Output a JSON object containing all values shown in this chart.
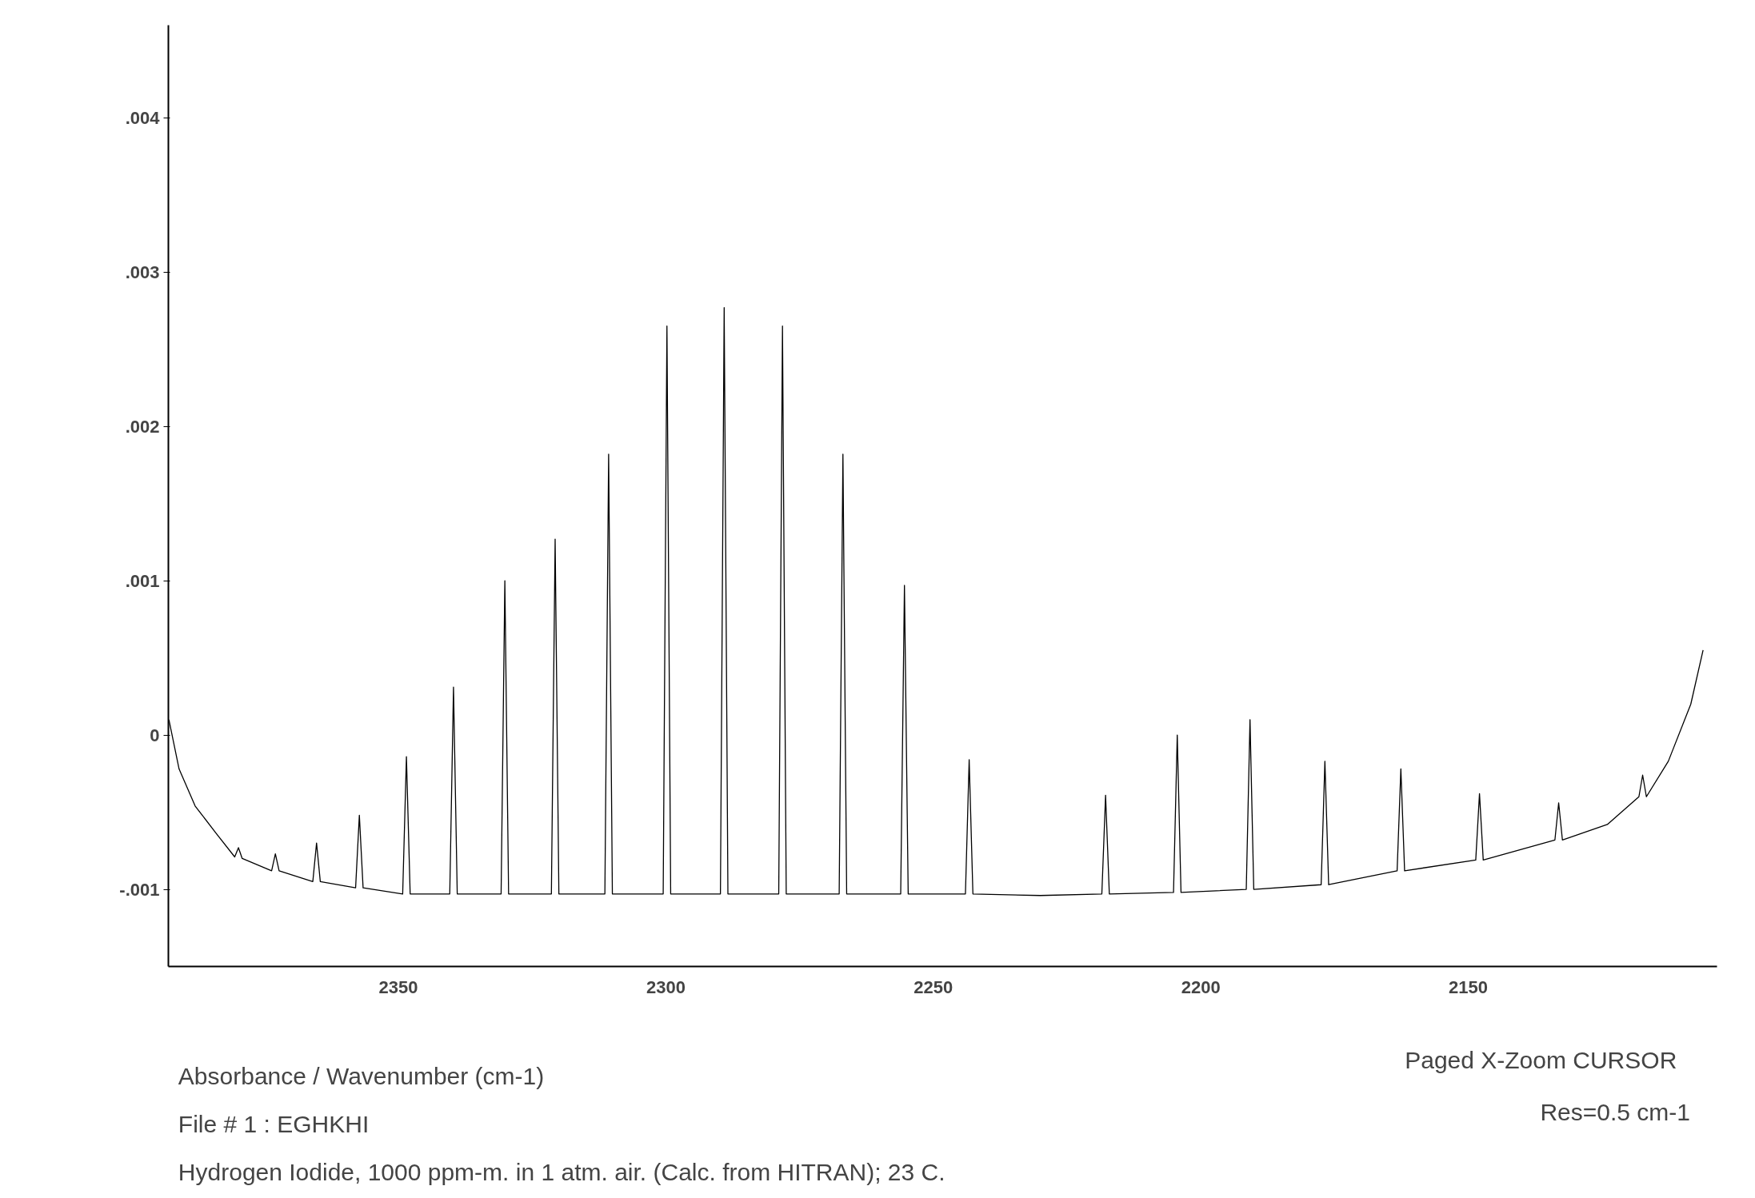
{
  "chart_data": {
    "type": "line",
    "x": [
      2392.9,
      2391,
      2388,
      2384,
      2380.6,
      2379.9,
      2379.2,
      2373.7,
      2373.0,
      2372.3,
      2366.0,
      2365.3,
      2364.6,
      2358.0,
      2357.3,
      2356.6,
      2349.2,
      2348.5,
      2347.8,
      2340.4,
      2339.7,
      2339.0,
      2330.8,
      2330.1,
      2329.4,
      2321.4,
      2320.7,
      2320.0,
      2311.4,
      2310.7,
      2310.0,
      2300.5,
      2299.8,
      2299.1,
      2289.8,
      2289.1,
      2288.4,
      2278.9,
      2278.2,
      2277.5,
      2267.6,
      2266.9,
      2266.2,
      2256.1,
      2255.4,
      2254.7,
      2244.0,
      2243.3,
      2242.6,
      2230,
      2218.5,
      2217.8,
      2217.1,
      2205.1,
      2204.4,
      2203.7,
      2191.5,
      2190.8,
      2190.1,
      2177.5,
      2176.8,
      2176.1,
      2163.3,
      2162.6,
      2161.9,
      2148.6,
      2147.9,
      2147.2,
      2133.8,
      2133.1,
      2132.4,
      2124,
      2118.1,
      2117.4,
      2116.7,
      2112.6,
      2108.4,
      2106.1
    ],
    "series": [
      {
        "color": "#000000",
        "values": [
          0.0001,
          -0.00022,
          -0.00046,
          -0.00064,
          -0.00079,
          -0.00073,
          -0.0008,
          -0.00088,
          -0.00077,
          -0.00088,
          -0.00095,
          -0.0007,
          -0.00095,
          -0.00099,
          -0.00052,
          -0.00099,
          -0.00103,
          -0.00014,
          -0.00103,
          -0.00103,
          0.00031,
          -0.00103,
          -0.00103,
          0.001,
          -0.00103,
          -0.00103,
          0.00127,
          -0.00103,
          -0.00103,
          0.00182,
          -0.00103,
          -0.00103,
          0.00265,
          -0.00103,
          -0.00103,
          0.00277,
          -0.00103,
          -0.00103,
          0.00265,
          -0.00103,
          -0.00103,
          0.00182,
          -0.00103,
          -0.00103,
          0.00097,
          -0.00103,
          -0.00103,
          -0.00016,
          -0.00103,
          -0.00104,
          -0.00103,
          -0.00039,
          -0.00103,
          -0.00102,
          0,
          -0.00102,
          -0.001,
          0.0001,
          -0.001,
          -0.00097,
          -0.00017,
          -0.00097,
          -0.00088,
          -0.00022,
          -0.00088,
          -0.00081,
          -0.00038,
          -0.00081,
          -0.00068,
          -0.00044,
          -0.00068,
          -0.00058,
          -0.0004,
          -0.00026,
          -0.0004,
          -0.00017,
          0.0002,
          0.00055
        ]
      }
    ],
    "xlim": [
      2393,
      2103.5
    ],
    "ylim": [
      -0.0015,
      0.0046
    ],
    "xticks": [
      2350,
      2300,
      2250,
      2200,
      2150
    ],
    "yticks": [
      {
        "value": -0.001,
        "label": "-.001"
      },
      0,
      {
        "value": 0.001,
        "label": ".001"
      },
      {
        "value": 0.002,
        "label": ".002"
      },
      {
        "value": 0.003,
        "label": ".003"
      },
      {
        "value": 0.004,
        "label": ".004"
      }
    ],
    "grid": false,
    "annotations": [
      "Absorbance / Wavenumber (cm-1)",
      "File # 1 : EGHKHI",
      "Hydrogen Iodide, 1000 ppm-m. in 1 atm. air. (Calc. from HITRAN); 23 C.",
      "Paged   X-Zoom CURSOR",
      "Res=0.5 cm-1"
    ]
  }
}
